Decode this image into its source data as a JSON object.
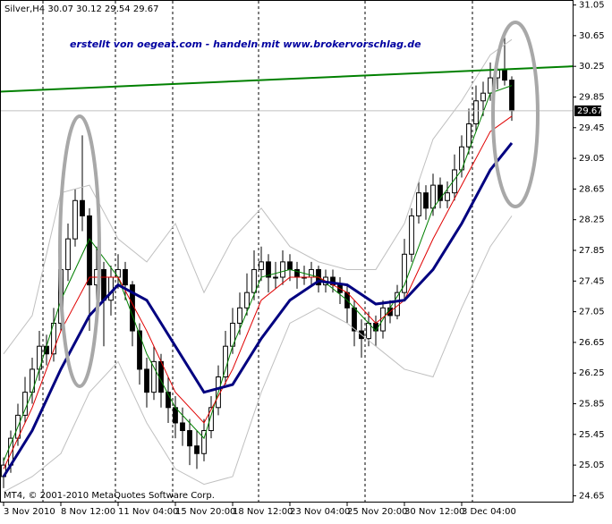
{
  "chart_data": {
    "type": "candlestick",
    "symbol": "Silver,H4",
    "watermark": "erstellt von oegeat.com - handeln mit www.brokervorschlag.de",
    "footer": "MT4, © 2001-2010 MetaQuotes Software Corp.",
    "xlim": [
      -0.5,
      79.5
    ],
    "ylim": [
      24.62,
      31.08
    ],
    "yticks": [
      31.05,
      30.65,
      30.25,
      29.85,
      29.45,
      29.05,
      28.65,
      28.25,
      27.85,
      27.45,
      27.05,
      26.65,
      26.25,
      25.85,
      25.45,
      25.05,
      24.65
    ],
    "xticks": [
      {
        "value": 0,
        "label": "3 Nov 2010"
      },
      {
        "value": 8,
        "label": "8 Nov 12:00"
      },
      {
        "value": 16,
        "label": "11 Nov 04:00"
      },
      {
        "value": 24,
        "label": "15 Nov 20:00"
      },
      {
        "value": 32,
        "label": "18 Nov 12:00"
      },
      {
        "value": 40,
        "label": "23 Nov 04:00"
      },
      {
        "value": 48,
        "label": "25 Nov 20:00"
      },
      {
        "value": 56,
        "label": "30 Nov 12:00"
      },
      {
        "value": 64,
        "label": "3 Dec 04:00"
      }
    ],
    "up_color": "#ffffff",
    "down_color": "#000000",
    "candles": [
      [
        24.9,
        25.15,
        24.75,
        25.05
      ],
      [
        25.05,
        25.5,
        24.95,
        25.4
      ],
      [
        25.4,
        25.85,
        25.3,
        25.7
      ],
      [
        25.7,
        26.2,
        25.6,
        26.0
      ],
      [
        26.0,
        26.45,
        25.85,
        26.3
      ],
      [
        26.3,
        26.8,
        26.15,
        26.6
      ],
      [
        26.6,
        26.75,
        26.35,
        26.5
      ],
      [
        26.5,
        27.1,
        26.4,
        26.9
      ],
      [
        26.9,
        27.8,
        26.8,
        27.6
      ],
      [
        27.6,
        28.2,
        27.45,
        28.0
      ],
      [
        28.0,
        28.65,
        27.9,
        28.5
      ],
      [
        28.5,
        29.35,
        28.1,
        28.3
      ],
      [
        28.3,
        28.4,
        26.8,
        27.4
      ],
      [
        27.4,
        27.9,
        27.2,
        27.6
      ],
      [
        27.6,
        27.7,
        26.6,
        27.2
      ],
      [
        27.2,
        27.65,
        27.0,
        27.5
      ],
      [
        27.5,
        27.8,
        27.35,
        27.6
      ],
      [
        27.6,
        27.7,
        27.2,
        27.4
      ],
      [
        27.4,
        27.45,
        26.6,
        26.8
      ],
      [
        26.8,
        26.9,
        26.1,
        26.3
      ],
      [
        26.3,
        26.45,
        25.8,
        26.0
      ],
      [
        26.0,
        26.6,
        25.9,
        26.4
      ],
      [
        26.4,
        26.5,
        25.8,
        26.0
      ],
      [
        26.0,
        26.2,
        25.6,
        25.8
      ],
      [
        25.8,
        25.95,
        25.4,
        25.6
      ],
      [
        25.6,
        25.8,
        25.3,
        25.5
      ],
      [
        25.5,
        25.65,
        25.05,
        25.3
      ],
      [
        25.3,
        25.5,
        25.0,
        25.2
      ],
      [
        25.2,
        25.65,
        25.1,
        25.5
      ],
      [
        25.5,
        25.95,
        25.4,
        25.8
      ],
      [
        25.8,
        26.35,
        25.7,
        26.2
      ],
      [
        26.2,
        26.8,
        26.1,
        26.6
      ],
      [
        26.6,
        27.1,
        26.5,
        26.9
      ],
      [
        26.9,
        27.3,
        26.75,
        27.1
      ],
      [
        27.1,
        27.55,
        27.0,
        27.3
      ],
      [
        27.3,
        27.85,
        27.2,
        27.6
      ],
      [
        27.6,
        27.9,
        27.45,
        27.7
      ],
      [
        27.7,
        27.8,
        27.3,
        27.5
      ],
      [
        27.5,
        27.7,
        27.35,
        27.5
      ],
      [
        27.5,
        27.85,
        27.4,
        27.7
      ],
      [
        27.7,
        27.8,
        27.45,
        27.6
      ],
      [
        27.6,
        27.7,
        27.35,
        27.5
      ],
      [
        27.5,
        27.65,
        27.4,
        27.5
      ],
      [
        27.5,
        27.7,
        27.4,
        27.6
      ],
      [
        27.6,
        27.65,
        27.3,
        27.4
      ],
      [
        27.4,
        27.6,
        27.3,
        27.5
      ],
      [
        27.5,
        27.6,
        27.3,
        27.4
      ],
      [
        27.4,
        27.5,
        27.15,
        27.3
      ],
      [
        27.3,
        27.4,
        26.9,
        27.1
      ],
      [
        27.1,
        27.2,
        26.6,
        26.8
      ],
      [
        26.8,
        26.95,
        26.45,
        26.7
      ],
      [
        26.7,
        27.05,
        26.6,
        26.9
      ],
      [
        26.9,
        27.0,
        26.6,
        26.8
      ],
      [
        26.8,
        27.2,
        26.7,
        27.1
      ],
      [
        27.1,
        27.2,
        26.9,
        27.0
      ],
      [
        27.0,
        27.4,
        26.95,
        27.3
      ],
      [
        27.3,
        28.0,
        27.2,
        27.8
      ],
      [
        27.8,
        28.4,
        27.7,
        28.3
      ],
      [
        28.3,
        28.75,
        28.2,
        28.6
      ],
      [
        28.6,
        28.7,
        28.25,
        28.4
      ],
      [
        28.4,
        28.85,
        28.3,
        28.7
      ],
      [
        28.7,
        28.8,
        28.4,
        28.5
      ],
      [
        28.5,
        28.75,
        28.4,
        28.6
      ],
      [
        28.6,
        29.1,
        28.5,
        28.9
      ],
      [
        28.9,
        29.35,
        28.8,
        29.2
      ],
      [
        29.2,
        29.7,
        29.1,
        29.5
      ],
      [
        29.5,
        30.0,
        29.4,
        29.8
      ],
      [
        29.8,
        30.05,
        29.6,
        29.9
      ],
      [
        29.9,
        30.3,
        29.8,
        30.1
      ],
      [
        30.1,
        30.35,
        29.95,
        30.2
      ],
      [
        30.2,
        30.65,
        30.0,
        30.07
      ],
      [
        30.07,
        30.12,
        29.54,
        29.67
      ]
    ],
    "x": [
      0,
      4,
      8,
      12,
      16,
      20,
      24,
      28,
      32,
      36,
      40,
      44,
      48,
      52,
      56,
      60,
      64,
      68,
      71
    ],
    "series": [
      {
        "color": "#c0c0c0",
        "width": 1,
        "values": [
          26.5,
          27.0,
          28.6,
          28.7,
          28.0,
          27.7,
          28.2,
          27.3,
          28.0,
          28.4,
          27.9,
          27.7,
          27.6,
          27.6,
          28.2,
          29.3,
          29.8,
          30.4,
          30.6
        ]
      },
      {
        "color": "#c0c0c0",
        "width": 1,
        "values": [
          24.7,
          24.9,
          25.2,
          26.0,
          26.4,
          25.6,
          25.0,
          24.8,
          24.9,
          26.0,
          26.9,
          27.1,
          26.9,
          26.6,
          26.3,
          26.2,
          27.1,
          27.9,
          28.3
        ]
      },
      {
        "color": "#008000",
        "width": 1,
        "values": [
          25.1,
          26.0,
          27.2,
          28.0,
          27.5,
          26.5,
          25.8,
          25.4,
          26.6,
          27.5,
          27.6,
          27.5,
          27.2,
          26.8,
          27.4,
          28.4,
          28.9,
          29.9,
          30.0
        ]
      },
      {
        "color": "#e00000",
        "width": 1,
        "values": [
          25.0,
          25.8,
          26.8,
          27.5,
          27.5,
          26.8,
          26.0,
          25.6,
          26.3,
          27.2,
          27.5,
          27.5,
          27.3,
          26.9,
          27.2,
          28.0,
          28.7,
          29.4,
          29.6
        ]
      },
      {
        "color": "#000080",
        "width": 3,
        "values": [
          24.9,
          25.5,
          26.3,
          27.0,
          27.4,
          27.2,
          26.6,
          26.0,
          26.1,
          26.7,
          27.2,
          27.45,
          27.4,
          27.15,
          27.2,
          27.6,
          28.2,
          28.9,
          29.25
        ]
      }
    ],
    "trendline": {
      "color": "#008000",
      "x": [
        -0.5,
        79.5
      ],
      "values": [
        29.92,
        30.25
      ]
    }
  }
}
